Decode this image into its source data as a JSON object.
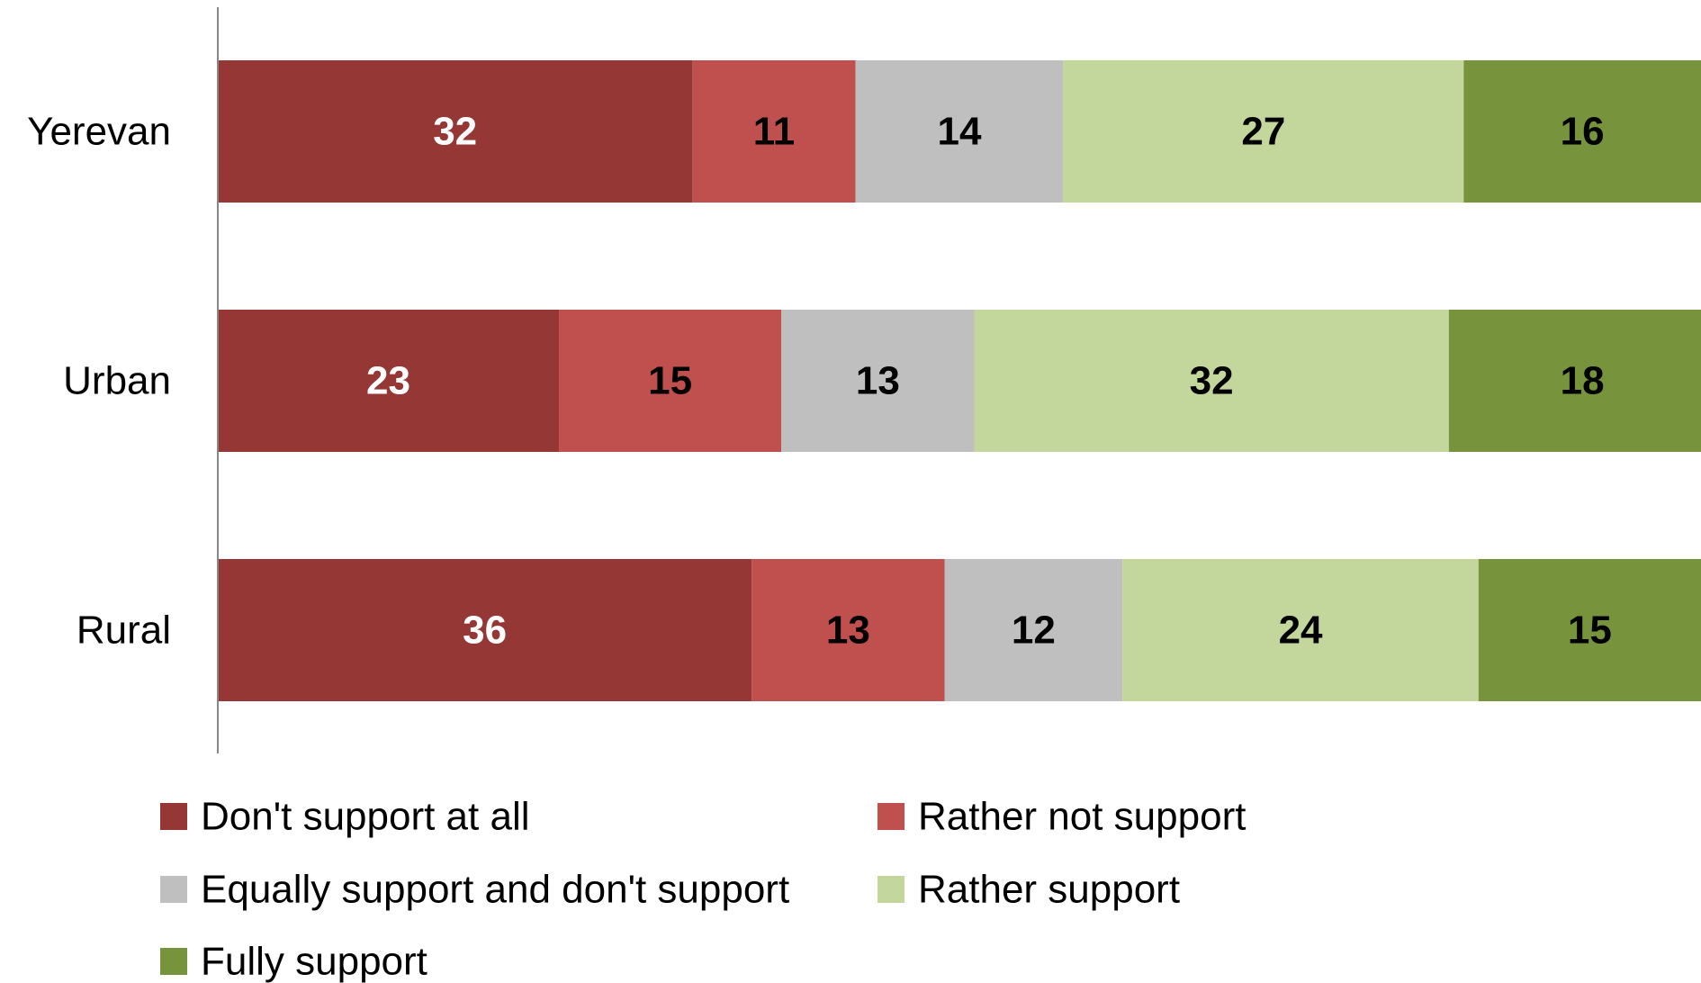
{
  "chart_data": {
    "type": "bar",
    "orientation": "horizontal",
    "stacked": true,
    "title": "",
    "xlabel": "",
    "ylabel": "",
    "xlim": [
      0,
      100
    ],
    "grid": false,
    "legend_position": "bottom",
    "categories": [
      "Yerevan",
      "Urban",
      "Rural"
    ],
    "series": [
      {
        "name": "Don't support at all",
        "color": "#953735",
        "label_color": "#ffffff",
        "values": [
          32,
          23,
          36
        ]
      },
      {
        "name": "Rather not support",
        "color": "#c0504d",
        "label_color": "#000000",
        "values": [
          11,
          15,
          13
        ]
      },
      {
        "name": "Equally support and don't support",
        "color": "#bfbfbf",
        "label_color": "#000000",
        "values": [
          14,
          13,
          12
        ]
      },
      {
        "name": "Rather support",
        "color": "#c3d69b",
        "label_color": "#000000",
        "values": [
          27,
          32,
          24
        ]
      },
      {
        "name": "Fully support",
        "color": "#77933c",
        "label_color": "#000000",
        "values": [
          16,
          18,
          15
        ]
      }
    ]
  }
}
